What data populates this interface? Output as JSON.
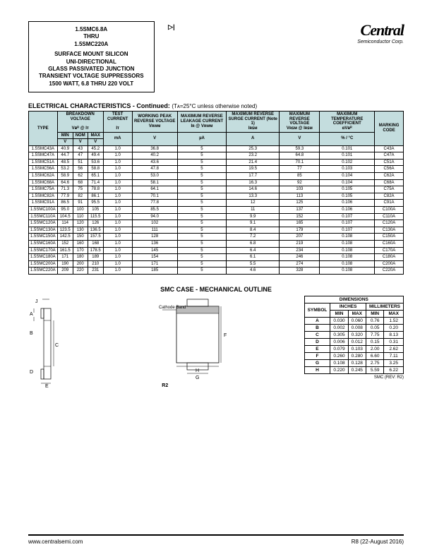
{
  "header": {
    "title_line1": "1.5SMC6.8A",
    "title_line2": "THRU",
    "title_line3": "1.5SMC220A",
    "subtitle_line1": "SURFACE MOUNT SILICON",
    "subtitle_line2": "UNI-DIRECTIONAL",
    "subtitle_line3": "GLASS PASSIVATED JUNCTION",
    "subtitle_line4": "TRANSIENT VOLTAGE SUPPRESSORS",
    "subtitle_line5": "1500 WATT, 6.8 THRU 220 VOLT",
    "logo_main": "Central",
    "logo_sub": "Semiconductor Corp."
  },
  "section_title": "ELECTRICAL CHARACTERISTICS - Continued:",
  "section_cond": "(Tᴀ=25°C unless otherwise noted)",
  "elec_headers": {
    "type": "TYPE",
    "breakdown": "BREAKDOWN VOLTAGE",
    "breakdown_sym": "Vʙᴿ @ Iᴛ",
    "test_current": "TEST CURRENT",
    "test_current_sym": "Iᴛ",
    "working": "WORKING PEAK REVERSE VOLTAGE",
    "working_sym": "Vʀᴡᴍ",
    "leakage": "MAXIMUM REVERSE LEAKAGE CURRENT",
    "leakage_sym": "Iʀ @ Vʀᴡᴍ",
    "surge": "MAXIMUM REVERSE SURGE CURRENT (Note 1)",
    "surge_sym": "Iʀꜱᴍ",
    "reverse_v": "MAXIMUM REVERSE VOLTAGE",
    "reverse_v_sym": "Vʀꜱᴍ @ Iʀꜱᴍ",
    "temp_coef": "MAXIMUM TEMPERATURE COEFFICIENT",
    "temp_coef_sym": "αVʙᴿ",
    "marking": "MARKING CODE",
    "units": {
      "min": "MIN",
      "nom": "NOM",
      "max": "MAX",
      "v": "V",
      "ma": "mA",
      "ua": "µA",
      "a": "A",
      "pct": "% / °C"
    }
  },
  "elec_rows": [
    [
      "1.5SMC43A",
      "40.9",
      "43",
      "45.2",
      "1.0",
      "36.8",
      "5",
      "25.3",
      "59.3",
      "0.101",
      "C43A"
    ],
    [
      "1.5SMC47A",
      "44.7",
      "47",
      "49.4",
      "1.0",
      "40.2",
      "5",
      "23.2",
      "64.8",
      "0.101",
      "C47A"
    ],
    [
      "1.5SMC51A",
      "48.5",
      "51",
      "53.6",
      "1.0",
      "43.6",
      "5",
      "21.4",
      "70.1",
      "0.102",
      "C51A"
    ],
    [
      "1.5SMC56A",
      "53.2",
      "56",
      "58.8",
      "1.0",
      "47.8",
      "5",
      "19.5",
      "77",
      "0.103",
      "C56A"
    ],
    [
      "1.5SMC62A",
      "58.9",
      "62",
      "65.1",
      "1.0",
      "53.0",
      "5",
      "17.7",
      "85",
      "0.104",
      "C62A"
    ],
    [
      "1.5SMC68A",
      "64.6",
      "68",
      "71.4",
      "1.0",
      "58.1",
      "5",
      "16.3",
      "92",
      "0.104",
      "C68A"
    ],
    [
      "1.5SMC75A",
      "71.3",
      "75",
      "78.8",
      "1.0",
      "64.1",
      "5",
      "14.6",
      "103",
      "0.105",
      "C75A"
    ],
    [
      "1.5SMC82A",
      "77.9",
      "82",
      "86.1",
      "1.0",
      "70.1",
      "5",
      "13.3",
      "113",
      "0.105",
      "C82A"
    ],
    [
      "1.5SMC91A",
      "86.5",
      "91",
      "95.5",
      "1.0",
      "77.8",
      "5",
      "12",
      "125",
      "0.106",
      "C91A"
    ],
    [
      "1.5SMC100A",
      "95.0",
      "100",
      "105",
      "1.0",
      "85.5",
      "5",
      "11",
      "137",
      "0.106",
      "C100A"
    ],
    [
      "1.5SMC110A",
      "104.5",
      "110",
      "115.5",
      "1.0",
      "94.0",
      "5",
      "9.9",
      "152",
      "0.107",
      "C110A"
    ],
    [
      "1.5SMC120A",
      "114",
      "120",
      "126",
      "1.0",
      "102",
      "5",
      "9.1",
      "165",
      "0.107",
      "C120A"
    ],
    [
      "1.5SMC130A",
      "123.5",
      "130",
      "136.5",
      "1.0",
      "111",
      "5",
      "8.4",
      "179",
      "0.107",
      "C130A"
    ],
    [
      "1.5SMC150A",
      "142.5",
      "150",
      "157.5",
      "1.0",
      "128",
      "5",
      "7.2",
      "207",
      "0.108",
      "C150A"
    ],
    [
      "1.5SMC160A",
      "152",
      "160",
      "168",
      "1.0",
      "136",
      "5",
      "6.8",
      "219",
      "0.108",
      "C160A"
    ],
    [
      "1.5SMC170A",
      "161.5",
      "170",
      "178.5",
      "1.0",
      "145",
      "5",
      "6.4",
      "234",
      "0.108",
      "C170A"
    ],
    [
      "1.5SMC180A",
      "171",
      "180",
      "189",
      "1.0",
      "154",
      "5",
      "6.1",
      "246",
      "0.108",
      "C180A"
    ],
    [
      "1.5SMC200A",
      "190",
      "200",
      "210",
      "1.0",
      "171",
      "5",
      "5.5",
      "274",
      "0.108",
      "C200A"
    ],
    [
      "1.5SMC220A",
      "209",
      "220",
      "231",
      "1.0",
      "185",
      "5",
      "4.6",
      "328",
      "0.108",
      "C220A"
    ]
  ],
  "mech_title": "SMC CASE - MECHANICAL OUTLINE",
  "mech_labels": {
    "cathode": "Cathode Band",
    "J": "J",
    "A": "A",
    "B": "B",
    "C": "C",
    "D": "D",
    "E": "E",
    "F": "F",
    "G": "G",
    "H": "H",
    "R2": "R2"
  },
  "dims_title": "DIMENSIONS",
  "dims_headers": {
    "symbol": "SYMBOL",
    "inches": "INCHES",
    "mm": "MILLIMETERS",
    "min": "MIN",
    "max": "MAX"
  },
  "dims_rows": [
    [
      "A",
      "0.030",
      "0.060",
      "0.76",
      "1.52"
    ],
    [
      "B",
      "0.002",
      "0.008",
      "0.05",
      "0.20"
    ],
    [
      "C",
      "0.305",
      "0.320",
      "7.75",
      "8.13"
    ],
    [
      "D",
      "0.006",
      "0.012",
      "0.15",
      "0.31"
    ],
    [
      "E",
      "0.079",
      "0.103",
      "2.00",
      "2.62"
    ],
    [
      "F",
      "0.260",
      "0.280",
      "6.60",
      "7.11"
    ],
    [
      "G",
      "0.108",
      "0.128",
      "2.75",
      "3.25"
    ],
    [
      "H",
      "0.220",
      "0.245",
      "5.59",
      "6.22"
    ]
  ],
  "dims_rev": "SMC (REV: R2)",
  "footer": {
    "url": "www.centralsemi.com",
    "rev": "R8 (22-August 2016)"
  }
}
